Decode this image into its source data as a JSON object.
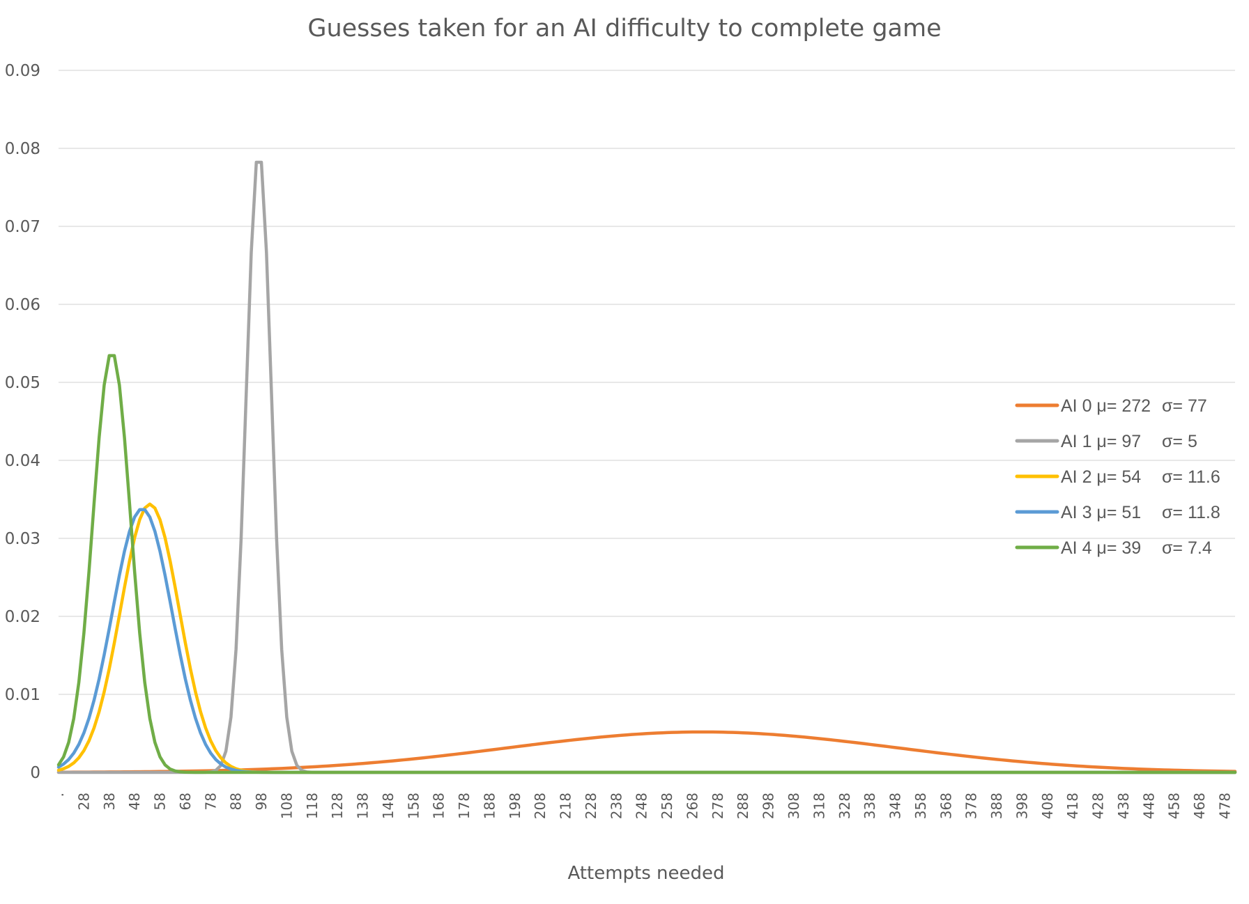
{
  "chart_data": {
    "type": "line",
    "title": "Guesses taken for an AI difficulty to complete game",
    "xlabel": "Attempts needed",
    "ylabel": "",
    "x_range": [
      18,
      482
    ],
    "ylim": [
      0,
      0.09
    ],
    "y_ticks": [
      "0",
      "0.01",
      "0.02",
      "0.03",
      "0.04",
      "0.05",
      "0.06",
      "0.07",
      "0.08",
      "0.09"
    ],
    "x_tick_first_label": ".",
    "x_ticks": [
      "28",
      "38",
      "48",
      "58",
      "68",
      "78",
      "88",
      "98",
      "108",
      "118",
      "128",
      "138",
      "148",
      "158",
      "168",
      "178",
      "188",
      "198",
      "208",
      "218",
      "228",
      "238",
      "248",
      "258",
      "268",
      "278",
      "288",
      "298",
      "308",
      "318",
      "328",
      "338",
      "348",
      "358",
      "368",
      "378",
      "388",
      "398",
      "408",
      "418",
      "428",
      "438",
      "448",
      "458",
      "468",
      "478"
    ],
    "grid": true,
    "legend_position": "right",
    "series": [
      {
        "name": "AI 0",
        "legend_text": "AI 0 μ= 272",
        "sigma_text": "σ= 77",
        "mean": 272,
        "sd": 77,
        "color": "#ED7D31"
      },
      {
        "name": "AI 1",
        "legend_text": "AI 1 μ= 97",
        "sigma_text": "σ= 5",
        "mean": 97,
        "sd": 5,
        "color": "#A5A5A5"
      },
      {
        "name": "AI 2",
        "legend_text": "AI 2 μ= 54",
        "sigma_text": "σ= 11.6",
        "mean": 54,
        "sd": 11.6,
        "color": "#FFC000"
      },
      {
        "name": "AI 3",
        "legend_text": "AI 3 μ= 51",
        "sigma_text": "σ= 11.8",
        "mean": 51,
        "sd": 11.8,
        "color": "#5B9BD5"
      },
      {
        "name": "AI 4",
        "legend_text": "AI 4 μ= 39",
        "sigma_text": "σ= 7.4",
        "mean": 39,
        "sd": 7.4,
        "color": "#70AD47"
      }
    ]
  }
}
